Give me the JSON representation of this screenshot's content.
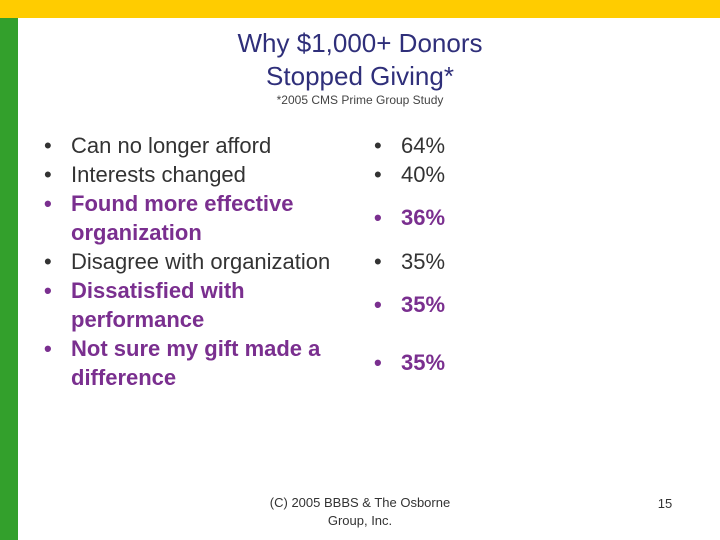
{
  "title": {
    "line1": "Why $1,000+ Donors",
    "line2": "Stopped Giving*"
  },
  "subtitle": "*2005 CMS Prime Group Study",
  "reasons": [
    {
      "label": "Can no longer afford",
      "value": "64%",
      "bold": false
    },
    {
      "label": "Interests changed",
      "value": "40%",
      "bold": false
    },
    {
      "label": "Found more effective organization",
      "value": "36%",
      "bold": true
    },
    {
      "label": "Disagree with organization",
      "value": "35%",
      "bold": false
    },
    {
      "label": "Dissatisfied with performance",
      "value": "35%",
      "bold": true
    },
    {
      "label": "Not sure my gift made a difference",
      "value": "35%",
      "bold": true
    }
  ],
  "footer": {
    "line1": "(C) 2005 BBBS & The Osborne",
    "line2": "Group, Inc."
  },
  "page_number": "15",
  "colors": {
    "top_bar": "#ffcc00",
    "left_bar": "#33a02c",
    "title": "#2f2f7a",
    "emphasis": "#7a2f8f"
  }
}
